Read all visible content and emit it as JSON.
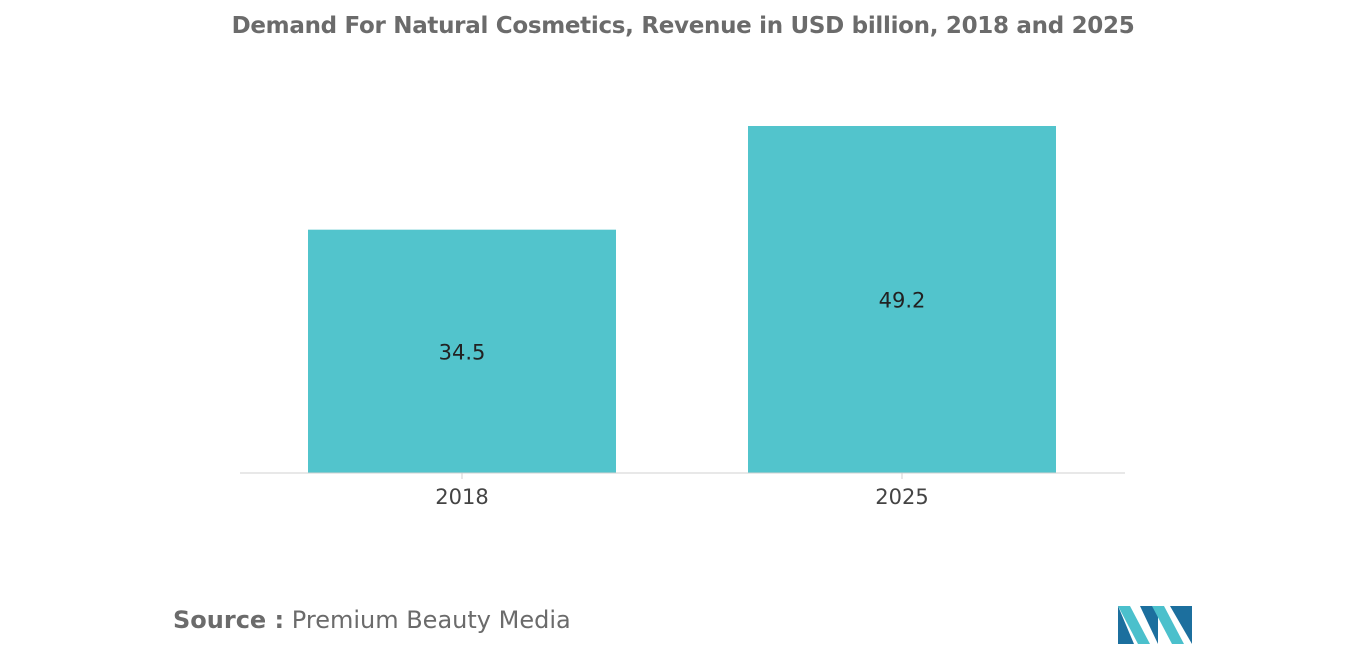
{
  "chart_data": {
    "type": "bar",
    "title": "Demand For Natural Cosmetics, Revenue in USD billion, 2018 and 2025",
    "categories": [
      "2018",
      "2025"
    ],
    "values": [
      34.5,
      49.2
    ],
    "data_labels": [
      "34.5",
      "49.2"
    ],
    "xlabel": "",
    "ylabel": "",
    "ylim": [
      0,
      49.2
    ],
    "grid": false,
    "legend": "none",
    "bar_color": "#52c4cc"
  },
  "source": {
    "label": "Source :",
    "text": "Premium Beauty Media"
  },
  "colors": {
    "bar": "#52c4cc",
    "title": "#6b6b6b",
    "axis": "#d0d0d0",
    "logo_dark": "#1c6f9e",
    "logo_light": "#4bc0cc"
  }
}
